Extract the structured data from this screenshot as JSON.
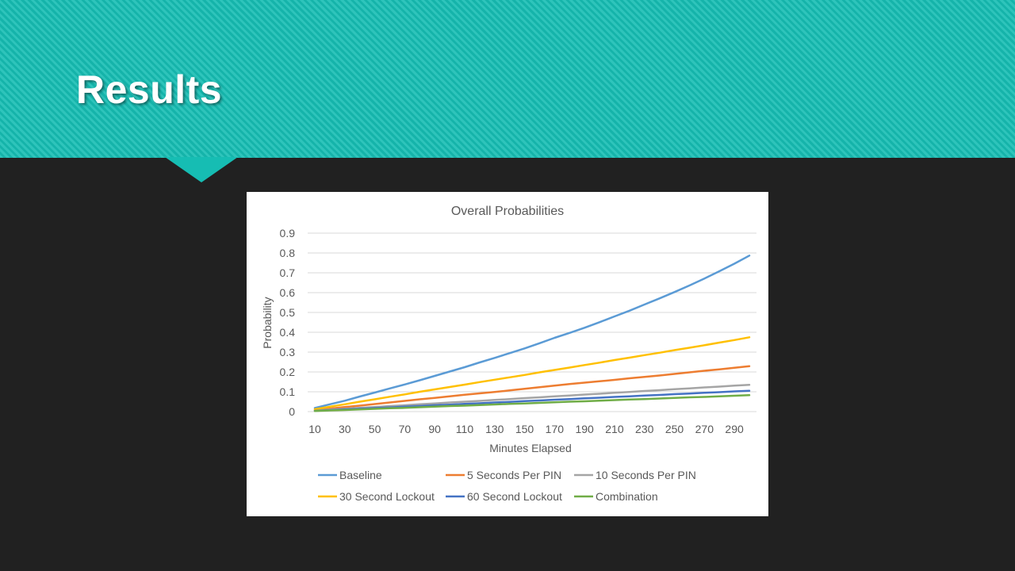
{
  "slide": {
    "title": "Results"
  },
  "chart_data": {
    "type": "line",
    "title": "Overall Probabilities",
    "xlabel": "Minutes Elapsed",
    "ylabel": "Probability",
    "ylim": [
      0,
      0.9
    ],
    "yticks": [
      "0",
      "0.1",
      "0.2",
      "0.3",
      "0.4",
      "0.5",
      "0.6",
      "0.7",
      "0.8",
      "0.9"
    ],
    "grid": true,
    "legend_position": "bottom",
    "x": [
      10,
      20,
      30,
      40,
      50,
      60,
      70,
      80,
      90,
      100,
      110,
      120,
      130,
      140,
      150,
      160,
      170,
      180,
      190,
      200,
      210,
      220,
      230,
      240,
      250,
      260,
      270,
      280,
      290,
      300
    ],
    "xtick_labels": [
      "10",
      "30",
      "50",
      "70",
      "90",
      "110",
      "130",
      "150",
      "170",
      "190",
      "210",
      "230",
      "250",
      "270",
      "290"
    ],
    "series": [
      {
        "name": "Baseline",
        "color": "#5b9bd5",
        "values": [
          0.018,
          0.037,
          0.055,
          0.076,
          0.096,
          0.117,
          0.137,
          0.158,
          0.18,
          0.202,
          0.224,
          0.248,
          0.271,
          0.295,
          0.319,
          0.345,
          0.372,
          0.397,
          0.423,
          0.451,
          0.48,
          0.509,
          0.54,
          0.571,
          0.603,
          0.636,
          0.671,
          0.708,
          0.746,
          0.787
        ]
      },
      {
        "name": "5 Seconds Per PIN",
        "color": "#ed7d31",
        "values": [
          0.008,
          0.015,
          0.023,
          0.03,
          0.038,
          0.046,
          0.054,
          0.062,
          0.069,
          0.077,
          0.085,
          0.092,
          0.099,
          0.107,
          0.115,
          0.123,
          0.131,
          0.139,
          0.146,
          0.153,
          0.16,
          0.168,
          0.175,
          0.182,
          0.19,
          0.198,
          0.206,
          0.213,
          0.221,
          0.229
        ]
      },
      {
        "name": "10 Seconds Per PIN",
        "color": "#a5a5a5",
        "values": [
          0.005,
          0.01,
          0.014,
          0.019,
          0.023,
          0.028,
          0.032,
          0.037,
          0.041,
          0.046,
          0.05,
          0.054,
          0.059,
          0.063,
          0.068,
          0.072,
          0.077,
          0.081,
          0.086,
          0.09,
          0.095,
          0.099,
          0.104,
          0.108,
          0.113,
          0.117,
          0.122,
          0.126,
          0.131,
          0.135
        ]
      },
      {
        "name": "30 Second Lockout",
        "color": "#ffc000",
        "values": [
          0.012,
          0.025,
          0.037,
          0.05,
          0.062,
          0.075,
          0.087,
          0.1,
          0.112,
          0.124,
          0.136,
          0.149,
          0.161,
          0.173,
          0.185,
          0.198,
          0.21,
          0.222,
          0.235,
          0.247,
          0.26,
          0.272,
          0.285,
          0.297,
          0.31,
          0.322,
          0.335,
          0.348,
          0.361,
          0.375
        ]
      },
      {
        "name": "60 Second Lockout",
        "color": "#4472c4",
        "values": [
          0.004,
          0.007,
          0.011,
          0.014,
          0.018,
          0.021,
          0.025,
          0.028,
          0.032,
          0.035,
          0.039,
          0.042,
          0.046,
          0.049,
          0.053,
          0.056,
          0.06,
          0.063,
          0.067,
          0.07,
          0.074,
          0.077,
          0.081,
          0.084,
          0.088,
          0.091,
          0.095,
          0.098,
          0.102,
          0.105
        ]
      },
      {
        "name": "Combination",
        "color": "#70ad47",
        "values": [
          0.003,
          0.006,
          0.008,
          0.011,
          0.014,
          0.017,
          0.019,
          0.022,
          0.025,
          0.028,
          0.03,
          0.033,
          0.036,
          0.039,
          0.041,
          0.044,
          0.047,
          0.05,
          0.052,
          0.055,
          0.058,
          0.061,
          0.063,
          0.066,
          0.069,
          0.072,
          0.074,
          0.077,
          0.08,
          0.083
        ]
      }
    ]
  }
}
